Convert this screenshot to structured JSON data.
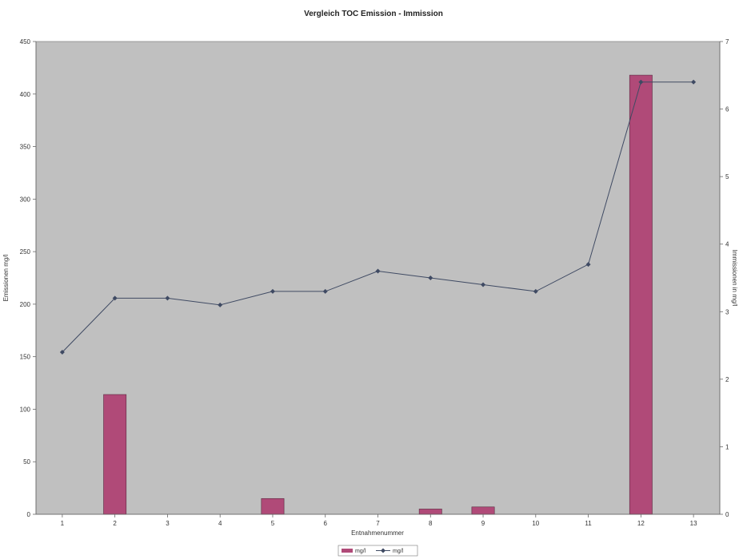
{
  "chart_data": {
    "type": "bar",
    "title": "Vergleich TOC Emission - Immission",
    "xlabel": "Entnahmenummer",
    "ylabel": "Emissionen mg/l",
    "y2label": "Immissionen in mg/l",
    "categories": [
      "1",
      "2",
      "3",
      "4",
      "5",
      "6",
      "7",
      "8",
      "9",
      "10",
      "11",
      "12",
      "13"
    ],
    "ylim": [
      0,
      450
    ],
    "yticks": [
      0,
      50,
      100,
      150,
      200,
      250,
      300,
      350,
      400,
      450
    ],
    "y2lim": [
      0,
      7
    ],
    "y2ticks": [
      0,
      1,
      2,
      3,
      4,
      5,
      6,
      7
    ],
    "grid": false,
    "legend_position": "bottom-center",
    "series": [
      {
        "name": "mg/l",
        "kind": "bar",
        "axis": "left",
        "color": "#b04a78",
        "values": [
          0,
          114,
          0,
          0,
          15,
          0,
          0,
          5,
          7,
          0,
          0,
          418,
          0
        ]
      },
      {
        "name": "mg/l",
        "kind": "line",
        "axis": "right",
        "color": "#3f4a63",
        "values": [
          2.4,
          3.2,
          3.2,
          3.1,
          3.3,
          3.3,
          3.6,
          3.5,
          3.4,
          3.3,
          3.7,
          6.4,
          6.4
        ]
      }
    ]
  }
}
